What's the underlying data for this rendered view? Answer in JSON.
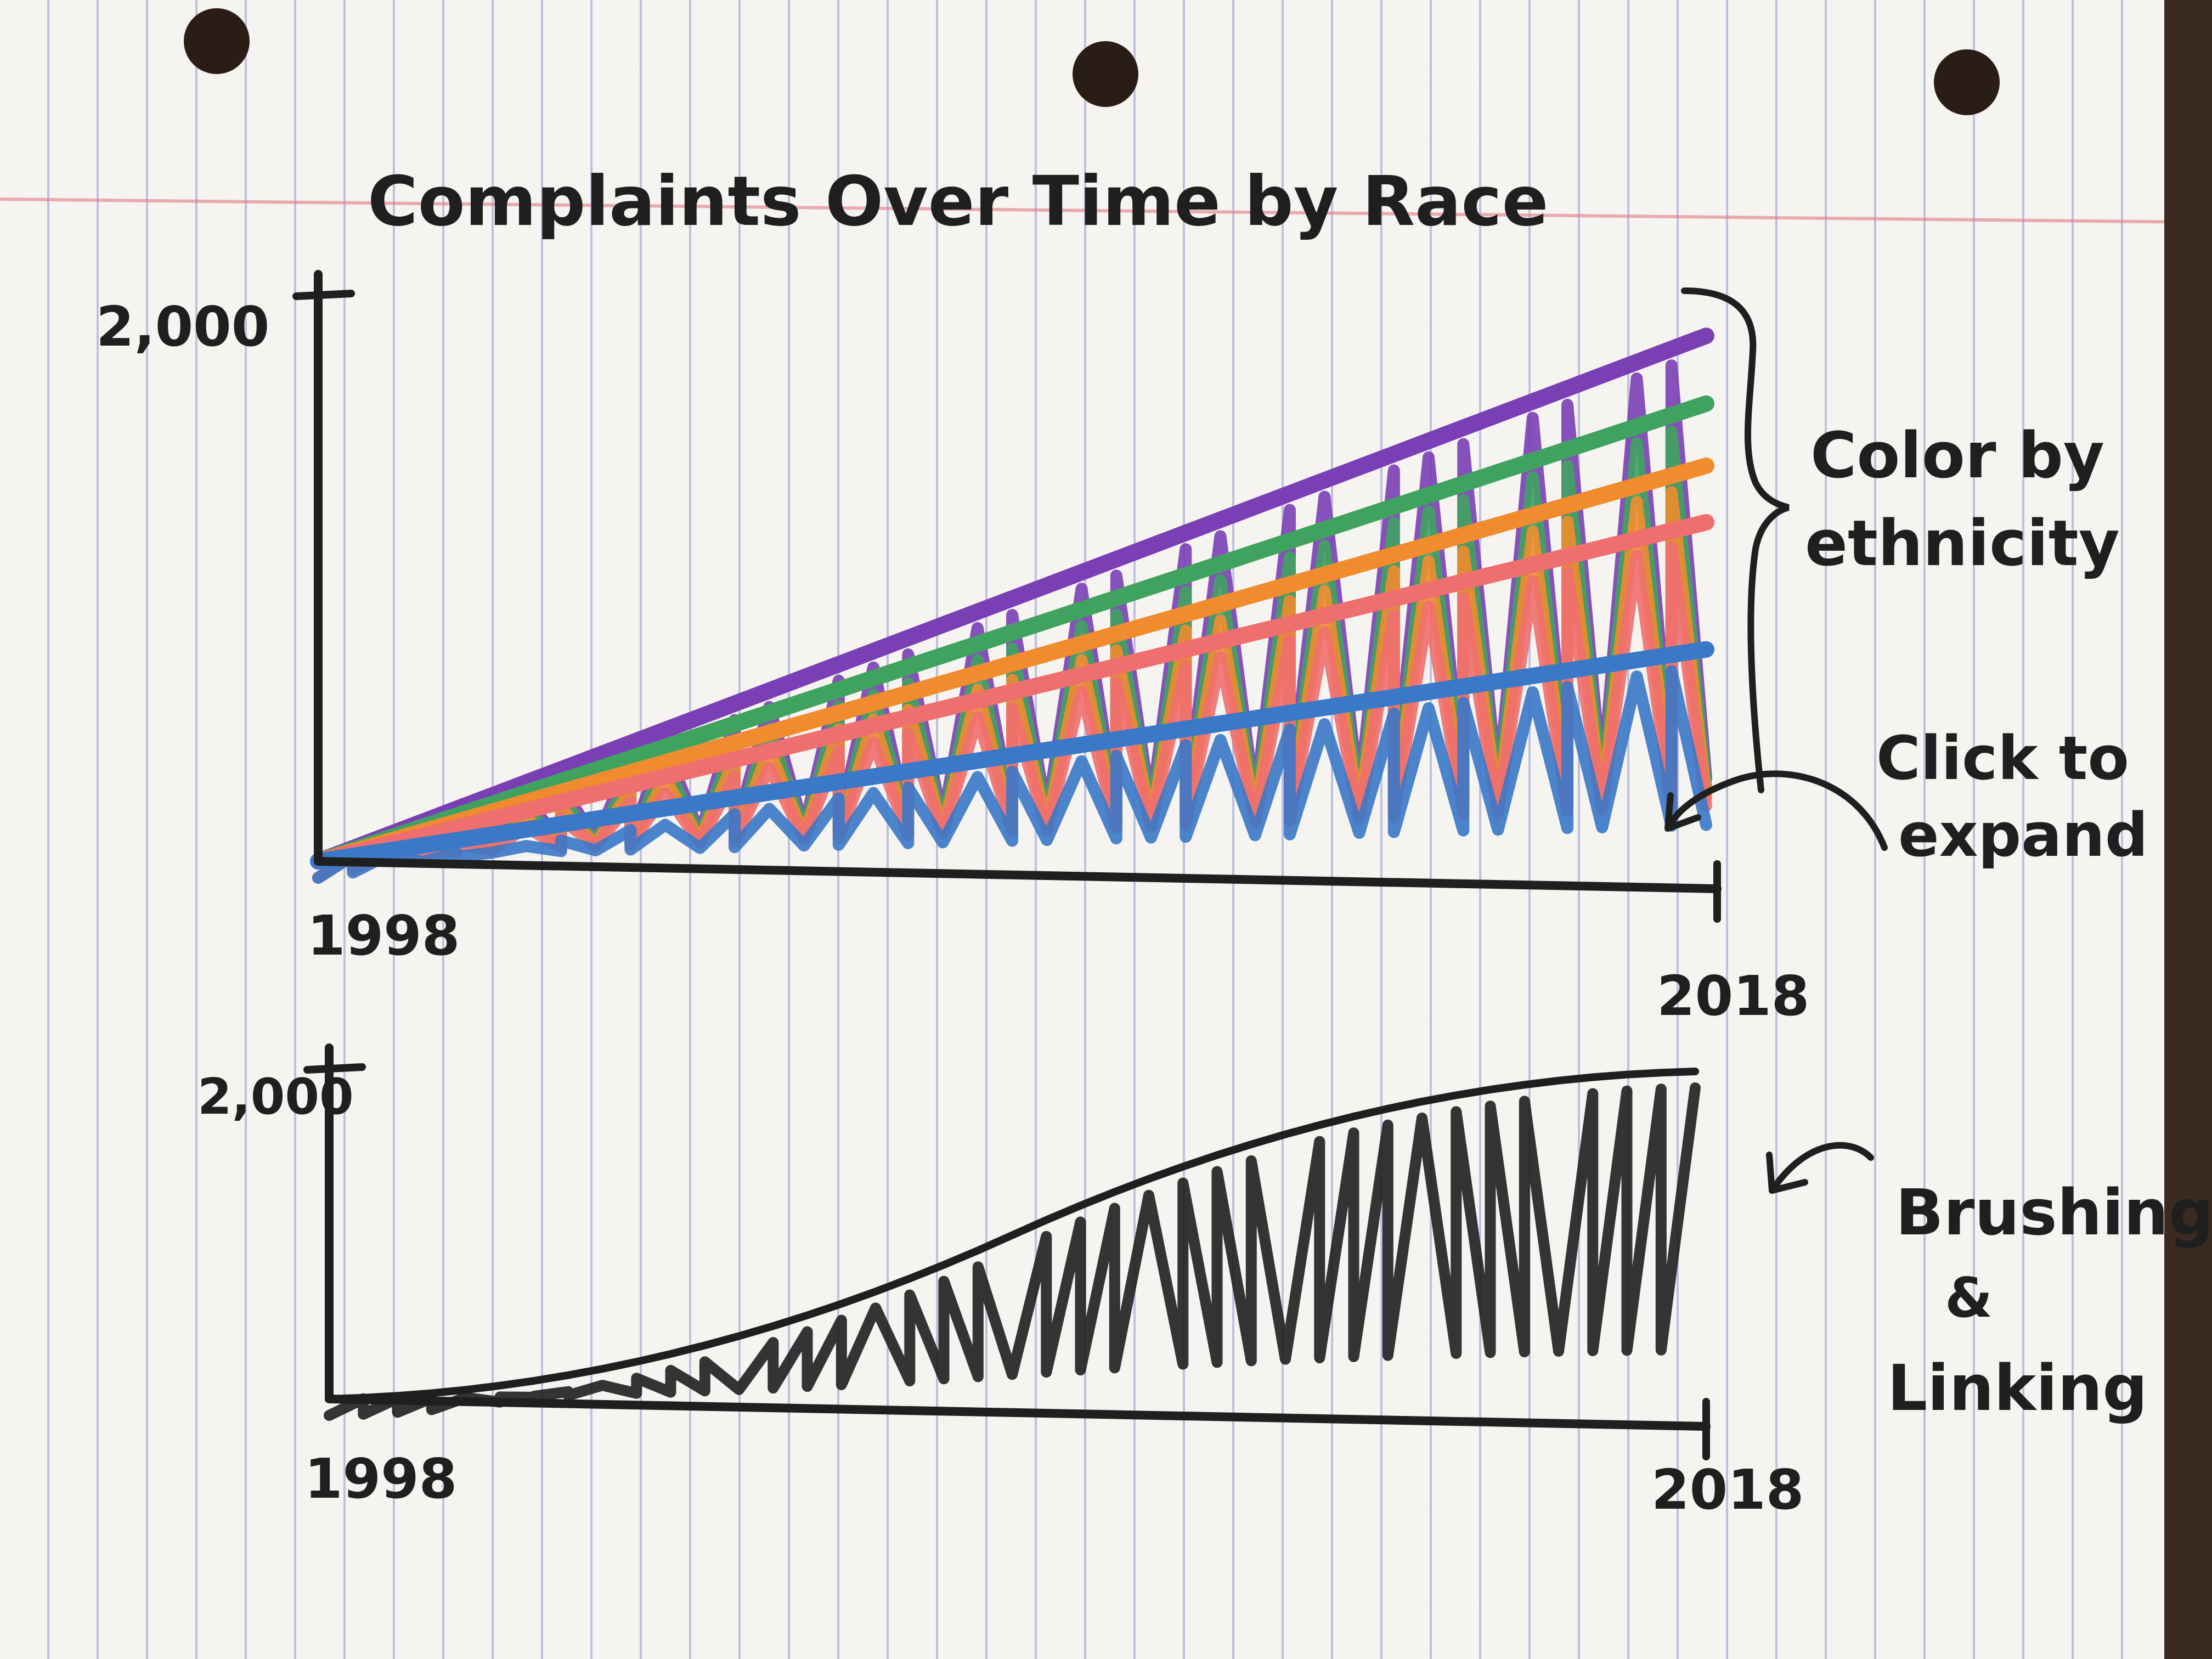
{
  "title": "Complaints Over Time by Race",
  "annotations": {
    "color": [
      "Color by",
      "ethnicity"
    ],
    "expand": [
      "Click to",
      "expand"
    ],
    "brush": [
      "Brushing",
      "&",
      "Linking"
    ]
  },
  "chart_data": [
    {
      "type": "area",
      "title": "Complaints Over Time by Race",
      "x": [
        1998,
        2018
      ],
      "xlim": [
        1998,
        2018
      ],
      "ylim": [
        0,
        2000
      ],
      "ytick_labels": [
        "2,000"
      ],
      "xtick_labels": [
        "1998",
        "2018"
      ],
      "series": [
        {
          "color": "#3a78c8",
          "values": [
            0,
            750
          ]
        },
        {
          "color": "#ef6f6f",
          "values": [
            0,
            1200
          ]
        },
        {
          "color": "#f08c2e",
          "values": [
            0,
            1400
          ]
        },
        {
          "color": "#3fa35f",
          "values": [
            0,
            1620
          ]
        },
        {
          "color": "#7b3fb5",
          "values": [
            0,
            1860
          ]
        }
      ]
    },
    {
      "type": "area",
      "x": [
        1998,
        2018
      ],
      "xlim": [
        1998,
        2018
      ],
      "ylim": [
        0,
        2000
      ],
      "ytick_labels": [
        "2,000"
      ],
      "xtick_labels": [
        "1998",
        "2018"
      ],
      "series": [
        {
          "color": "#1f1f1f",
          "values": [
            0,
            1990
          ]
        }
      ]
    }
  ]
}
